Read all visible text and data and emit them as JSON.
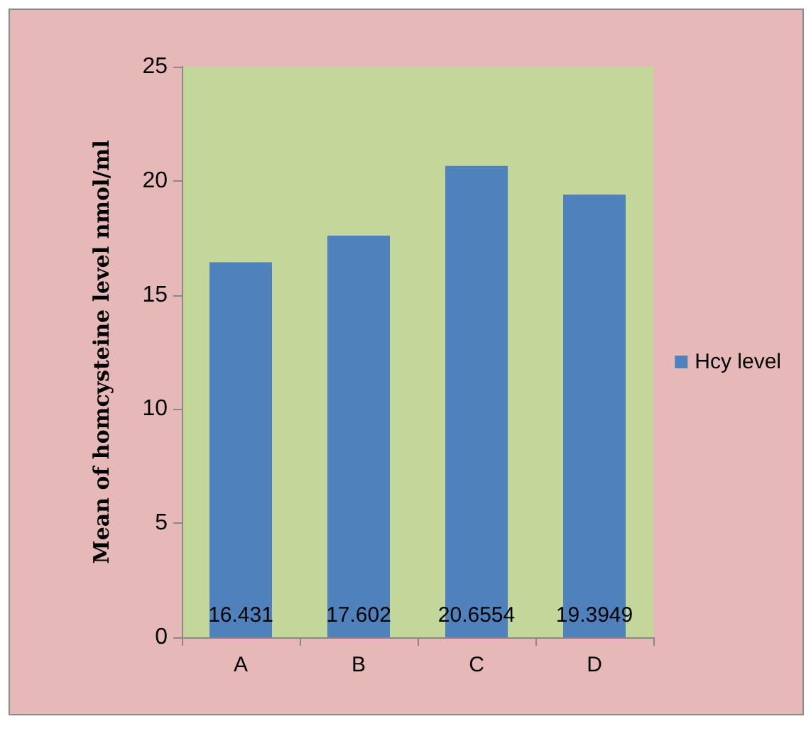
{
  "chart_data": {
    "type": "bar",
    "ylabel": "Mean of homcysteine level nmol/ml",
    "categories": [
      "A",
      "B",
      "C",
      "D"
    ],
    "series": [
      {
        "name": "Hcy level",
        "color": "#4f81bd",
        "values": [
          16.431,
          17.602,
          20.6554,
          19.3949
        ]
      }
    ],
    "ylim": [
      0,
      25
    ],
    "yticks": [
      0,
      5,
      10,
      15,
      20,
      25
    ],
    "data_labels": true,
    "legend": "right",
    "grid": false
  }
}
